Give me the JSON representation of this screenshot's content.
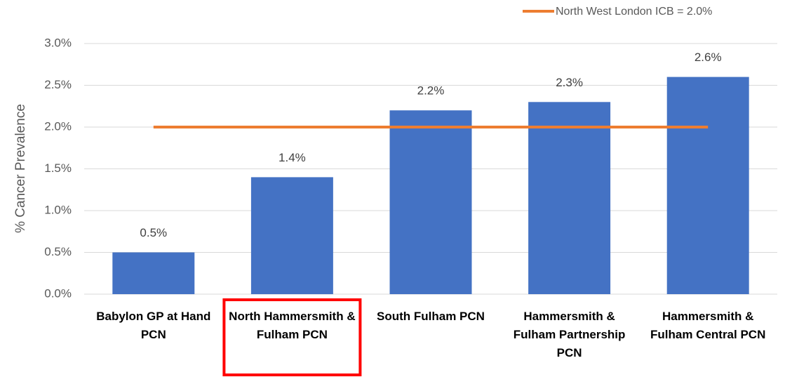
{
  "chart_data": {
    "type": "bar",
    "y_axis_label": "% Cancer Prevalence",
    "categories": [
      "Babylon GP at Hand PCN",
      "North Hammersmith & Fulham PCN",
      "South Fulham PCN",
      "Hammersmith & Fulham Partnership PCN",
      "Hammersmith & Fulham Central PCN"
    ],
    "values": [
      0.5,
      1.4,
      2.2,
      2.3,
      2.6
    ],
    "value_labels": [
      "0.5%",
      "1.4%",
      "2.2%",
      "2.3%",
      "2.6%"
    ],
    "color": "#4472c4",
    "reference_line": {
      "name": "North West London ICB = 2.0%",
      "value": 2.0,
      "color": "#ed7d31"
    },
    "highlight_category": 1,
    "highlight_color": "#ff0000",
    "ylim": [
      0,
      3
    ],
    "yticks": [
      {
        "value": 0,
        "label": "0.0%"
      },
      {
        "value": 0.5,
        "label": "0.5%"
      },
      {
        "value": 1,
        "label": "1.0%"
      },
      {
        "value": 1.5,
        "label": "1.5%"
      },
      {
        "value": 2,
        "label": "2.0%"
      },
      {
        "value": 2.5,
        "label": "2.5%"
      },
      {
        "value": 3,
        "label": "3.0%"
      }
    ],
    "grid": true
  }
}
